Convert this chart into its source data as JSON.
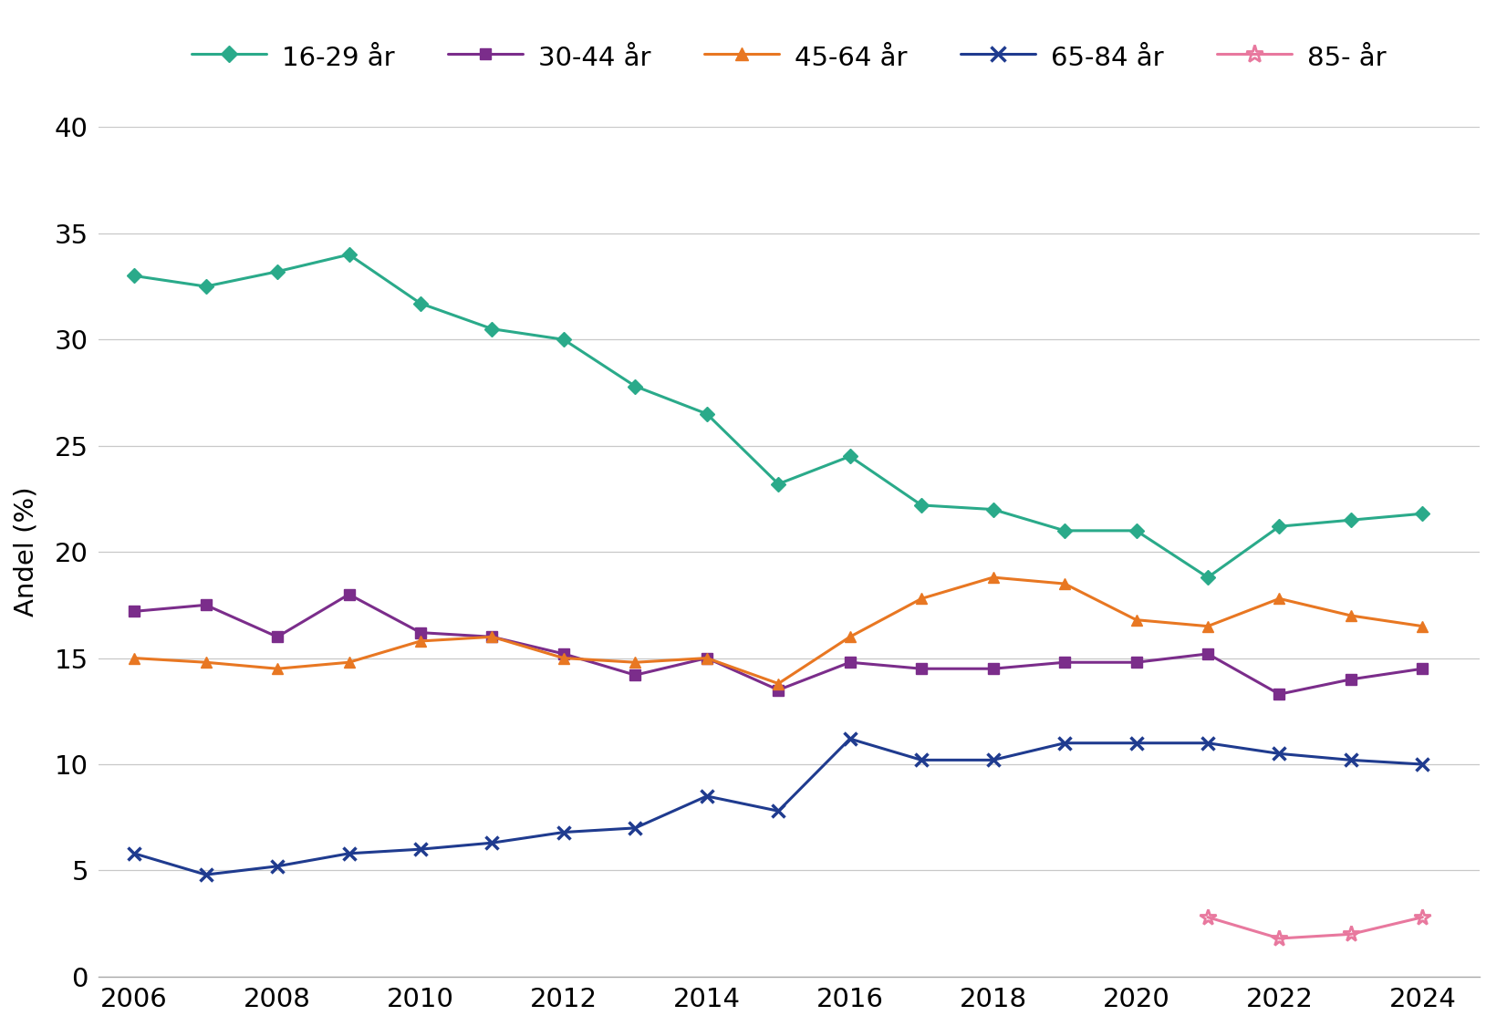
{
  "years": [
    2006,
    2007,
    2008,
    2009,
    2010,
    2011,
    2012,
    2013,
    2014,
    2015,
    2016,
    2017,
    2018,
    2019,
    2020,
    2021,
    2022,
    2023,
    2024
  ],
  "series": [
    {
      "label": "16-29 år",
      "color": "#2aaa8a",
      "marker": "D",
      "markersize": 8,
      "linewidth": 2.2,
      "values": [
        33.0,
        32.5,
        33.2,
        34.0,
        31.7,
        30.5,
        30.0,
        27.8,
        26.5,
        23.2,
        24.5,
        22.2,
        22.0,
        21.0,
        21.0,
        18.8,
        21.2,
        21.5,
        21.8
      ]
    },
    {
      "label": "30-44 år",
      "color": "#7b2d8b",
      "marker": "s",
      "markersize": 8,
      "linewidth": 2.2,
      "values": [
        17.2,
        17.5,
        16.0,
        18.0,
        16.2,
        16.0,
        15.2,
        14.2,
        15.0,
        13.5,
        14.8,
        14.5,
        14.5,
        14.8,
        14.8,
        15.2,
        13.3,
        14.0,
        14.5
      ]
    },
    {
      "label": "45-64 år",
      "color": "#e87722",
      "marker": "^",
      "markersize": 9,
      "linewidth": 2.2,
      "values": [
        15.0,
        14.8,
        14.5,
        14.8,
        15.8,
        16.0,
        15.0,
        14.8,
        15.0,
        13.8,
        16.0,
        17.8,
        18.8,
        18.5,
        16.8,
        16.5,
        17.8,
        17.0,
        16.5
      ]
    },
    {
      "label": "65-84 år",
      "color": "#1f3b8f",
      "marker": "x",
      "markersize": 10,
      "linewidth": 2.2,
      "values": [
        5.8,
        4.8,
        5.2,
        5.8,
        6.0,
        6.3,
        6.8,
        7.0,
        8.5,
        7.8,
        11.2,
        10.2,
        10.2,
        11.0,
        11.0,
        11.0,
        10.5,
        10.2,
        10.0
      ]
    },
    {
      "label": "85- år",
      "color": "#e8789e",
      "marker": "*",
      "markersize": 13,
      "linewidth": 2.2,
      "values": [
        null,
        null,
        null,
        null,
        null,
        null,
        null,
        null,
        null,
        null,
        null,
        null,
        null,
        null,
        null,
        2.8,
        1.8,
        2.0,
        2.8
      ]
    }
  ],
  "ylabel": "Andel (%)",
  "ylim": [
    0,
    40
  ],
  "yticks": [
    0,
    5,
    10,
    15,
    20,
    25,
    30,
    35,
    40
  ],
  "xlim": [
    2005.5,
    2024.8
  ],
  "xticks": [
    2006,
    2008,
    2010,
    2012,
    2014,
    2016,
    2018,
    2020,
    2022,
    2024
  ],
  "background_color": "#ffffff",
  "grid_color": "#c8c8c8"
}
